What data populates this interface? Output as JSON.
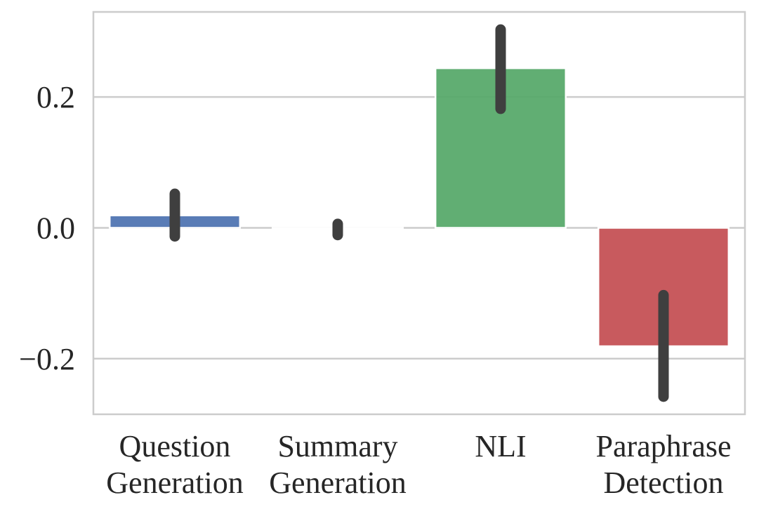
{
  "chart_data": {
    "type": "bar",
    "title": "",
    "xlabel": "",
    "ylabel": "",
    "categories": [
      [
        "Question",
        "Generation"
      ],
      [
        "Summary",
        "Generation"
      ],
      [
        "NLI"
      ],
      [
        "Paraphrase",
        "Detection"
      ]
    ],
    "values": [
      0.019,
      -0.001,
      0.244,
      -0.181
    ],
    "error_bars": [
      {
        "low": -0.013,
        "high": 0.052
      },
      {
        "low": -0.011,
        "high": 0.006
      },
      {
        "low": 0.182,
        "high": 0.303
      },
      {
        "low": -0.258,
        "high": -0.103
      }
    ],
    "colors": [
      "#4c72b0",
      "#dd8452",
      "#55a868",
      "#c44e52"
    ],
    "ylim": [
      -0.285,
      0.33
    ],
    "yticks": [
      -0.2,
      0.0,
      0.2
    ],
    "ytick_labels": [
      "−0.2",
      "0.0",
      "0.2"
    ],
    "grid": true,
    "legend": "none"
  }
}
